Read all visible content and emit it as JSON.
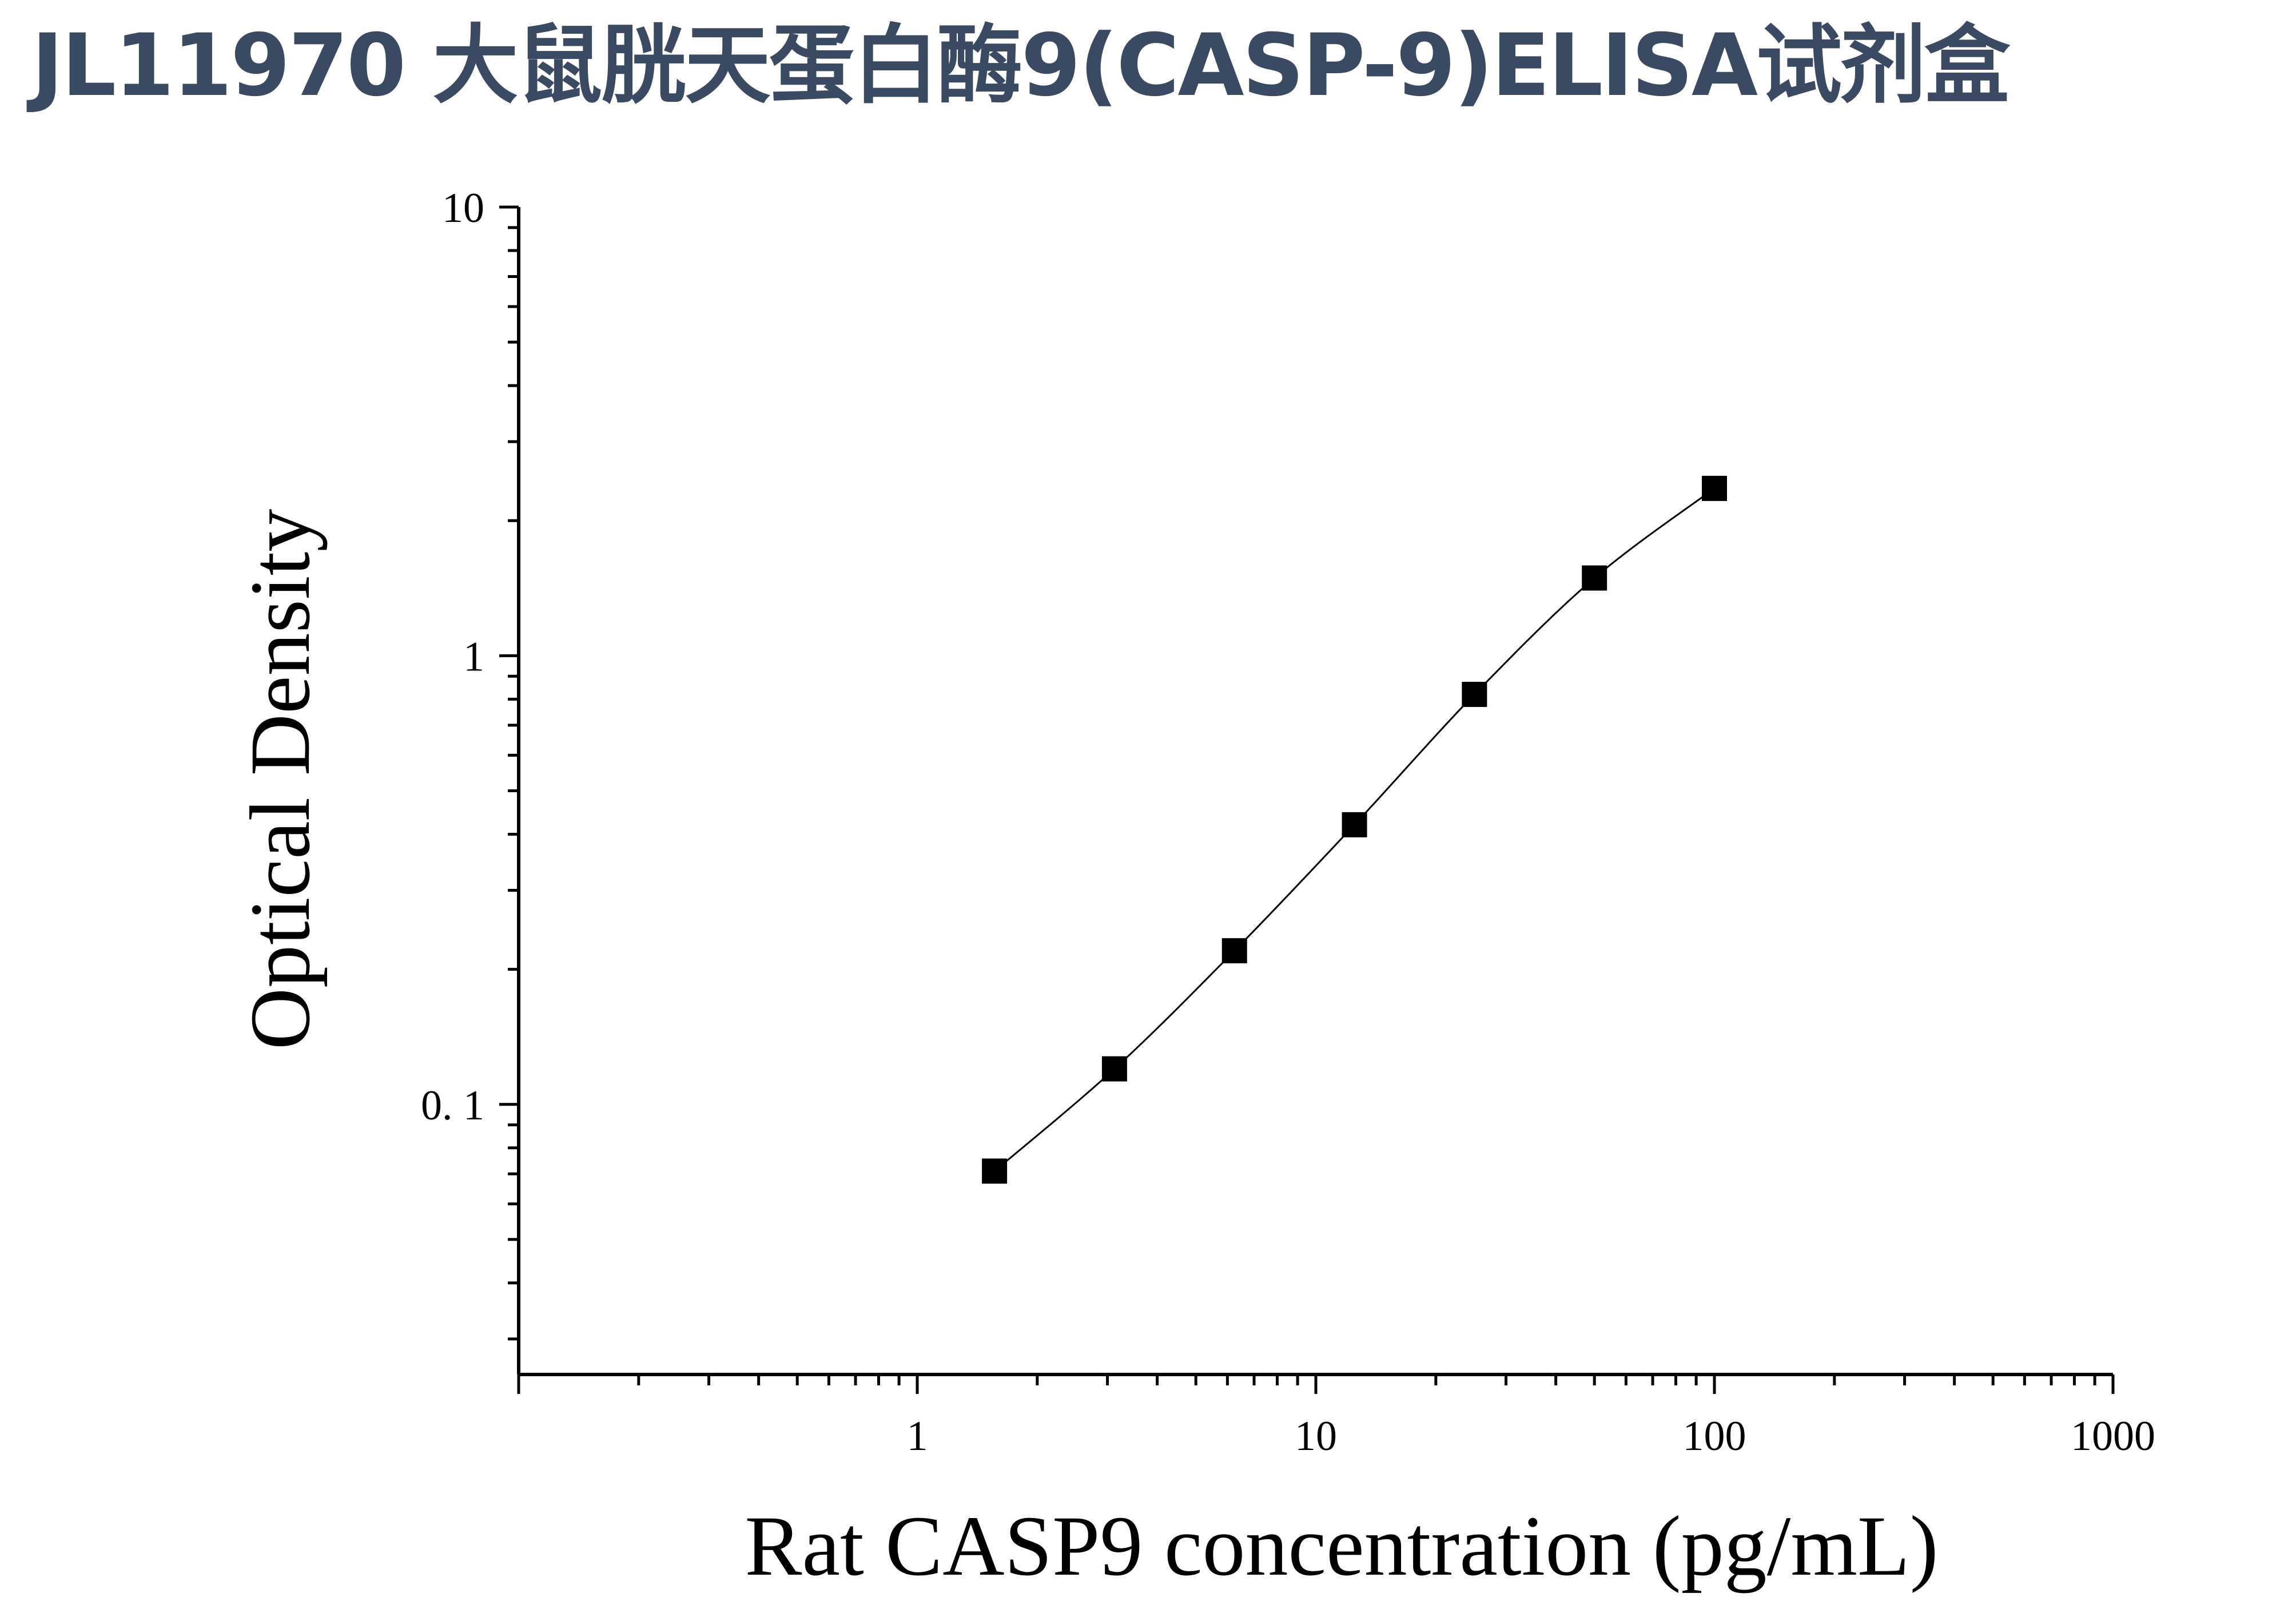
{
  "title": "JL11970 大鼠胱天蛋白酶9(CASP-9)ELISA试剂盒",
  "chart_data": {
    "type": "scatter",
    "title": "JL11970 大鼠胱天蛋白酶9(CASP-9)ELISA试剂盒",
    "xlabel": "Rat CASP9 concentration (pg/mL)",
    "ylabel": "Optical Density",
    "x_scale": "log",
    "y_scale": "log",
    "xlim": [
      0.1,
      1000
    ],
    "ylim": [
      0.025,
      10
    ],
    "x_ticks": [
      {
        "value": 1,
        "label": "1"
      },
      {
        "value": 10,
        "label": "10"
      },
      {
        "value": 100,
        "label": "100"
      },
      {
        "value": 1000,
        "label": "1000"
      }
    ],
    "y_ticks": [
      {
        "value": 0.1,
        "label": "0. 1"
      },
      {
        "value": 1,
        "label": "1"
      },
      {
        "value": 10,
        "label": "10"
      }
    ],
    "grid": false,
    "series": [
      {
        "marker": "square",
        "fit_line": "smooth curve",
        "color": "#000000",
        "x": [
          1.5625,
          3.125,
          6.25,
          12.5,
          25,
          50,
          100
        ],
        "y": [
          0.071,
          0.12,
          0.22,
          0.42,
          0.82,
          1.49,
          2.36
        ]
      }
    ]
  }
}
